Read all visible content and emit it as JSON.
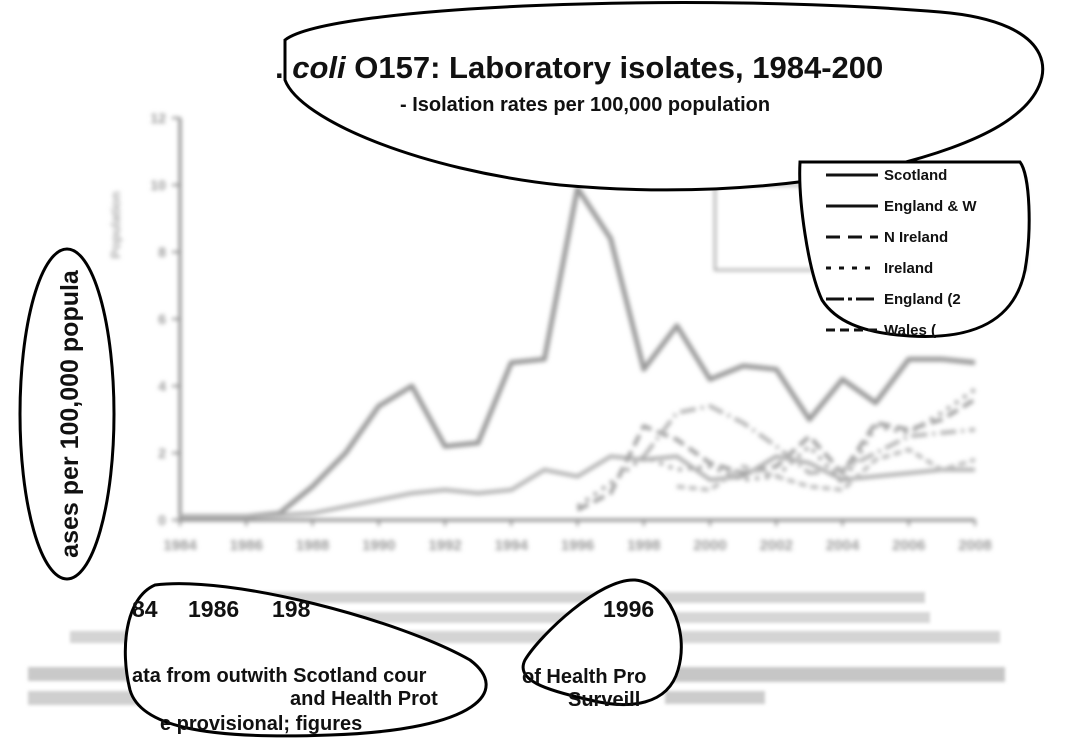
{
  "chart_data": {
    "type": "line",
    "title_parts": [
      ". ",
      "coli",
      " O157: Laboratory isolates, 1984-200"
    ],
    "subtitle": "- Isolation rates per 100,000 population",
    "ylabel": "ases per 100,000 popula",
    "ylabel_faded": "Population",
    "xlabel": "",
    "ylim": [
      0,
      12
    ],
    "y_ticks": [
      "0",
      "2",
      "4",
      "6",
      "8",
      "10",
      "12"
    ],
    "x_tick_labels": [
      "1984",
      "1986",
      "1988",
      "1990",
      "1992",
      "1994",
      "1996",
      "1998",
      "2000",
      "2002",
      "2004",
      "2006",
      "2008"
    ],
    "x_tick_labels_large": [
      "84",
      "1986",
      "198",
      "1996"
    ],
    "x": [
      1984,
      1985,
      1986,
      1987,
      1988,
      1989,
      1990,
      1991,
      1992,
      1993,
      1994,
      1995,
      1996,
      1997,
      1998,
      1999,
      2000,
      2001,
      2002,
      2003,
      2004,
      2005,
      2006,
      2007,
      2008
    ],
    "series": [
      {
        "name": "Scotland",
        "color": "#9a9a9a",
        "dash": "",
        "values": [
          0.1,
          0.1,
          0.1,
          0.2,
          1,
          2,
          3.4,
          4,
          2.2,
          2.3,
          4.7,
          4.8,
          9.9,
          8.4,
          4.5,
          5.8,
          4.2,
          4.6,
          4.5,
          3,
          4.2,
          3.5,
          4.8,
          4.8,
          4.7
        ]
      },
      {
        "name": "England & W",
        "color": "#b0b0b0",
        "dash": "",
        "values": [
          0.1,
          0.1,
          0.1,
          0.15,
          0.2,
          0.4,
          0.6,
          0.8,
          0.9,
          0.8,
          0.9,
          1.5,
          1.3,
          1.9,
          1.8,
          1.9,
          1.2,
          1.3,
          1.9,
          1.7,
          1.2,
          1.3,
          1.4,
          1.5,
          1.5
        ]
      },
      {
        "name": "N Ireland",
        "color": "#a0a0a0",
        "dash": "12 6",
        "values": [
          null,
          null,
          null,
          null,
          null,
          null,
          null,
          null,
          null,
          null,
          null,
          null,
          0.3,
          0.8,
          2.8,
          2.4,
          1.7,
          1.4,
          1.6,
          2.5,
          1.4,
          2.9,
          2.7,
          3.0,
          3.6
        ]
      },
      {
        "name": "Ireland",
        "color": "#a8a8a8",
        "dash": "4 6",
        "values": [
          null,
          null,
          null,
          null,
          null,
          null,
          null,
          null,
          null,
          null,
          null,
          null,
          0.4,
          1.1,
          1.9,
          1.5,
          1.6,
          1.2,
          1.3,
          2.2,
          1.1,
          2.8,
          2.6,
          3.2,
          3.9
        ]
      },
      {
        "name": "England (2",
        "color": "#b4b4b4",
        "dash": "16 5 3 5",
        "values": [
          null,
          null,
          null,
          null,
          null,
          null,
          null,
          null,
          null,
          null,
          null,
          null,
          null,
          null,
          1.9,
          3.2,
          3.4,
          2.9,
          2.2,
          1.4,
          1.5,
          2.0,
          2.5,
          2.6,
          2.7
        ]
      },
      {
        "name": "Wales (",
        "color": "#bcbcbc",
        "dash": "8 4",
        "values": [
          null,
          null,
          null,
          null,
          null,
          null,
          null,
          null,
          null,
          null,
          null,
          null,
          null,
          null,
          null,
          1.0,
          0.9,
          1.6,
          1.3,
          1.0,
          0.9,
          1.8,
          2.1,
          1.5,
          1.8
        ]
      }
    ],
    "legend_placement": "top-right",
    "footnote_lines": [
      "Figure: data from outwith Scotland courtesy of Health Protection Agency, Belfast & London",
      "and Health Protection Surveillance Centre, Dublin"
    ],
    "caption_large": [
      {
        "left": "ata from outwith Scotland cour",
        "right": "of Health Pro"
      },
      {
        "left": "and Health Prot",
        "right": "Surveill"
      },
      {
        "left": "e provisional; figures",
        "right": ""
      }
    ]
  }
}
